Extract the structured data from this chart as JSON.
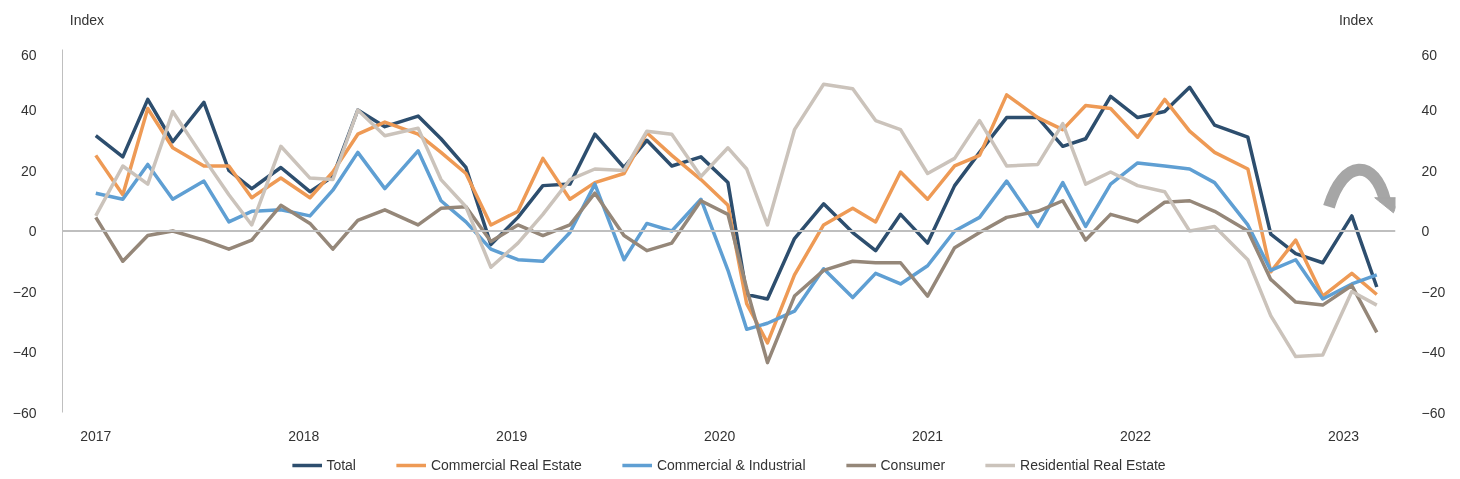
{
  "chart_data": {
    "type": "line",
    "ylabel": "Index",
    "y2label": "Index",
    "x": [
      2017.0,
      2017.13,
      2017.25,
      2017.37,
      2017.52,
      2017.64,
      2017.75,
      2017.89,
      2018.03,
      2018.14,
      2018.26,
      2018.39,
      2018.55,
      2018.66,
      2018.78,
      2018.9,
      2019.03,
      2019.15,
      2019.28,
      2019.4,
      2019.54,
      2019.65,
      2019.77,
      2019.91,
      2020.04,
      2020.13,
      2020.23,
      2020.36,
      2020.5,
      2020.64,
      2020.75,
      2020.87,
      2021.0,
      2021.13,
      2021.25,
      2021.38,
      2021.53,
      2021.65,
      2021.76,
      2021.88,
      2022.01,
      2022.14,
      2022.26,
      2022.38,
      2022.54,
      2022.65,
      2022.77,
      2022.9,
      2023.04,
      2023.16
    ],
    "series": [
      {
        "name": "Total",
        "color": "#2d4e6e",
        "values": [
          31.5,
          24.5,
          43.5,
          29.5,
          42.5,
          20,
          14,
          21,
          13,
          18,
          40,
          34.5,
          38,
          30.5,
          21,
          -4.5,
          4.5,
          15,
          15.5,
          32,
          21,
          30,
          21.5,
          24.5,
          16,
          -21,
          -22.5,
          -2.5,
          9,
          -0.5,
          -6.5,
          5.5,
          -4,
          15,
          26,
          37.5,
          37.5,
          28,
          30.5,
          44.5,
          37.5,
          39.5,
          47.5,
          35,
          31,
          -1,
          -7.5,
          -10.5,
          5,
          -18.5
        ]
      },
      {
        "name": "Commercial Real Estate",
        "color": "#ee9a55",
        "values": [
          25,
          12,
          40.5,
          27.5,
          21.5,
          21.5,
          11,
          17.5,
          11,
          19.5,
          32,
          36,
          32,
          26,
          19,
          2,
          6.5,
          24,
          10.5,
          16,
          19,
          32.5,
          25,
          17,
          8.5,
          -24,
          -37,
          -14.5,
          2,
          7.5,
          3,
          19.5,
          10.5,
          21.5,
          25,
          45,
          37.5,
          33.5,
          41.5,
          40.5,
          31,
          43.5,
          33,
          26,
          20.5,
          -13.5,
          -3,
          -21.5,
          -14,
          -21
        ]
      },
      {
        "name": "Commercial & Industrial",
        "color": "#5f9fd3",
        "values": [
          12.5,
          10.5,
          22,
          10.5,
          16.5,
          3,
          6.5,
          7,
          5,
          13.5,
          26,
          14,
          26.5,
          10,
          3,
          -6,
          -9.5,
          -10,
          -0.5,
          15.5,
          -9.5,
          2.5,
          0,
          10.5,
          -13,
          -32.5,
          -30.5,
          -26.5,
          -12.5,
          -22,
          -14,
          -17.5,
          -11.5,
          0,
          4.5,
          16.5,
          1.5,
          16,
          1.5,
          15.5,
          22.5,
          21.5,
          20.5,
          16,
          2,
          -13,
          -9.5,
          -22.5,
          -17.5,
          -14.5
        ]
      },
      {
        "name": "Consumer",
        "color": "#958779",
        "values": [
          4.5,
          -10,
          -1.5,
          0,
          -3,
          -6,
          -3,
          8.5,
          2.5,
          -6,
          3.5,
          7,
          2,
          7.5,
          8,
          -3.5,
          2,
          -1.5,
          2,
          12.5,
          -1.5,
          -6.5,
          -4,
          10,
          5.5,
          -19,
          -43.5,
          -21.5,
          -13,
          -10,
          -10.5,
          -10.5,
          -21.5,
          -5.5,
          -0.5,
          4.5,
          6.5,
          10,
          -3,
          5.5,
          3,
          9.5,
          10,
          6.5,
          0,
          -16,
          -23.5,
          -24.5,
          -18,
          -33.5
        ]
      },
      {
        "name": "Residential Real Estate",
        "color": "#cbc3bb",
        "values": [
          5,
          21.5,
          15.5,
          39.5,
          24,
          12,
          2,
          28,
          17.5,
          17,
          40,
          31.5,
          34,
          17,
          8,
          -12,
          -4,
          5.5,
          17,
          20.5,
          20,
          33,
          32,
          18,
          27.5,
          20.5,
          2,
          33.5,
          48.5,
          47,
          36.5,
          33.5,
          19,
          24,
          36.5,
          21.5,
          22,
          35.5,
          15.5,
          19.5,
          15,
          13,
          0,
          1.5,
          -9.5,
          -28,
          -41.5,
          -41,
          -20,
          -24.5
        ]
      }
    ],
    "xlim": [
      2016.84,
      2023.25
    ],
    "xticks": [
      2017,
      2018,
      2019,
      2020,
      2021,
      2022,
      2023
    ],
    "ylim": [
      -60,
      60
    ],
    "yticks": [
      -60,
      -40,
      -20,
      0,
      20,
      40,
      60
    ],
    "y2lim": [
      -60,
      60
    ],
    "y2ticks": [
      -60,
      -40,
      -20,
      0,
      20,
      40,
      60
    ],
    "ref_lines": [
      {
        "axis": "y",
        "value": 0,
        "color": "#bfbfbf"
      }
    ],
    "grid": false,
    "legend": "bottom",
    "line_style": "solid"
  }
}
